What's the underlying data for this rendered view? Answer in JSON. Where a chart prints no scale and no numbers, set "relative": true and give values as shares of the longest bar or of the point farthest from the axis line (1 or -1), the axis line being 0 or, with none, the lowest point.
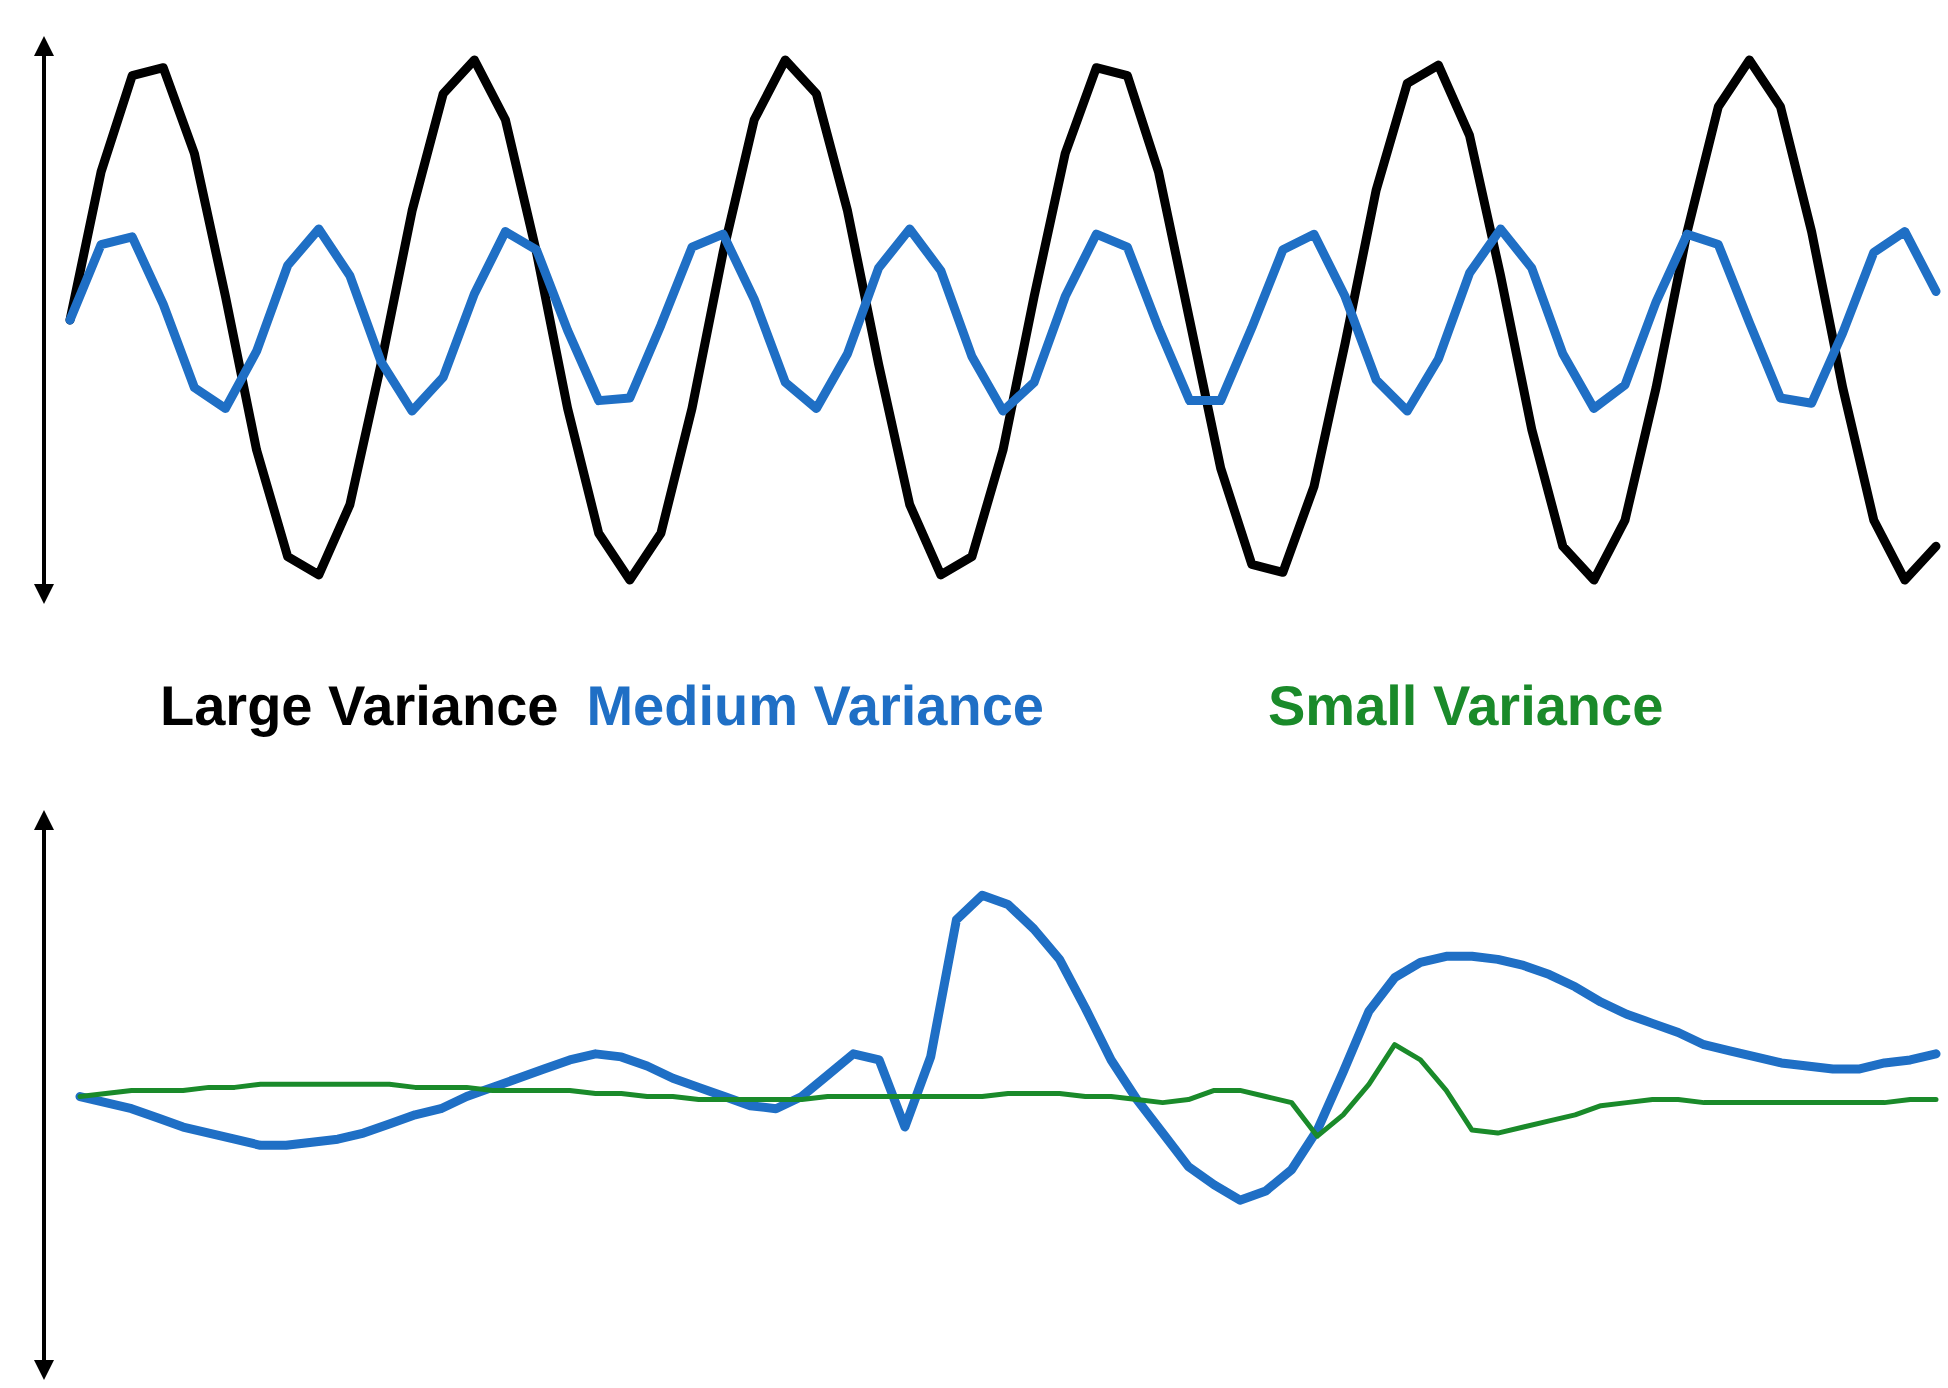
{
  "chart_data": [
    {
      "type": "line",
      "relative": true,
      "grid": false,
      "marker": "none",
      "line_style": "solid",
      "categories": [
        null,
        null,
        null,
        null,
        null,
        null,
        null,
        null,
        null,
        null,
        null,
        null,
        null,
        null,
        null,
        null,
        null,
        null,
        null,
        null,
        null,
        null,
        null,
        null,
        null,
        null,
        null,
        null,
        null,
        null,
        null,
        null,
        null,
        null,
        null,
        null,
        null,
        null,
        null,
        null,
        null,
        null,
        null,
        null,
        null,
        null,
        null,
        null,
        null,
        null,
        null,
        null,
        null,
        null,
        null,
        null,
        null,
        null,
        null,
        null,
        null
      ],
      "series": [
        {
          "name": "Large Variance",
          "color": "#000000",
          "values": [
            0.5,
            0.785,
            0.97,
            0.985,
            0.82,
            0.545,
            0.25,
            0.045,
            0.01,
            0.145,
            0.415,
            0.71,
            0.935,
            1,
            0.885,
            0.63,
            0.33,
            0.09,
            0,
            0.09,
            0.33,
            0.63,
            0.885,
            1,
            0.935,
            0.71,
            0.415,
            0.145,
            0.01,
            0.045,
            0.25,
            0.545,
            0.82,
            0.985,
            0.97,
            0.785,
            0.5,
            0.215,
            0.03,
            0.015,
            0.18,
            0.455,
            0.75,
            0.955,
            0.99,
            0.855,
            0.585,
            0.29,
            0.065,
            0,
            0.115,
            0.37,
            0.67,
            0.91,
            1,
            0.91,
            0.67,
            0.37,
            0.115,
            0,
            0.065
          ]
        },
        {
          "name": "Medium Variance",
          "color": "#1f6fc5",
          "values": [
            0.5,
            0.645,
            0.66,
            0.53,
            0.37,
            0.33,
            0.44,
            0.605,
            0.675,
            0.585,
            0.42,
            0.325,
            0.39,
            0.55,
            0.67,
            0.635,
            0.48,
            0.345,
            0.35,
            0.49,
            0.64,
            0.665,
            0.54,
            0.38,
            0.33,
            0.435,
            0.6,
            0.675,
            0.595,
            0.43,
            0.325,
            0.38,
            0.545,
            0.665,
            0.64,
            0.485,
            0.345,
            0.345,
            0.485,
            0.635,
            0.665,
            0.545,
            0.385,
            0.325,
            0.425,
            0.59,
            0.675,
            0.6,
            0.435,
            0.33,
            0.375,
            0.535,
            0.665,
            0.645,
            0.495,
            0.35,
            0.34,
            0.475,
            0.63,
            0.67,
            0.555
          ]
        }
      ]
    },
    {
      "type": "line",
      "relative": true,
      "grid": false,
      "marker": "none",
      "line_style": "solid",
      "categories": [
        null,
        null,
        null,
        null,
        null,
        null,
        null,
        null,
        null,
        null,
        null,
        null,
        null,
        null,
        null,
        null,
        null,
        null,
        null,
        null,
        null,
        null,
        null,
        null,
        null,
        null,
        null,
        null,
        null,
        null,
        null,
        null,
        null,
        null,
        null,
        null,
        null,
        null,
        null,
        null,
        null,
        null,
        null,
        null,
        null,
        null,
        null,
        null,
        null,
        null,
        null,
        null,
        null,
        null,
        null,
        null,
        null,
        null,
        null,
        null,
        null,
        null,
        null,
        null,
        null,
        null,
        null,
        null,
        null,
        null,
        null,
        null,
        null
      ],
      "series": [
        {
          "color": "#1f6fc5",
          "values": [
            0.34,
            0.32,
            0.3,
            0.27,
            0.24,
            0.22,
            0.2,
            0.18,
            0.18,
            0.19,
            0.2,
            0.22,
            0.25,
            0.28,
            0.3,
            0.34,
            0.37,
            0.4,
            0.43,
            0.46,
            0.48,
            0.47,
            0.44,
            0.4,
            0.37,
            0.34,
            0.31,
            0.3,
            0.34,
            0.41,
            0.48,
            0.46,
            0.24,
            0.47,
            0.92,
            1,
            0.97,
            0.89,
            0.79,
            0.63,
            0.46,
            0.33,
            0.22,
            0.11,
            0.05,
            0,
            0.03,
            0.1,
            0.23,
            0.42,
            0.62,
            0.73,
            0.78,
            0.8,
            0.8,
            0.79,
            0.77,
            0.74,
            0.7,
            0.65,
            0.61,
            0.58,
            0.55,
            0.51,
            0.49,
            0.47,
            0.45,
            0.44,
            0.43,
            0.43,
            0.45,
            0.46,
            0.48
          ]
        },
        {
          "name": "Small Variance",
          "color": "#1a8a2a",
          "values": [
            0.34,
            0.35,
            0.36,
            0.36,
            0.36,
            0.37,
            0.37,
            0.38,
            0.38,
            0.38,
            0.38,
            0.38,
            0.38,
            0.37,
            0.37,
            0.37,
            0.36,
            0.36,
            0.36,
            0.36,
            0.35,
            0.35,
            0.34,
            0.34,
            0.33,
            0.33,
            0.33,
            0.33,
            0.33,
            0.34,
            0.34,
            0.34,
            0.34,
            0.34,
            0.34,
            0.34,
            0.35,
            0.35,
            0.35,
            0.34,
            0.34,
            0.33,
            0.32,
            0.33,
            0.36,
            0.36,
            0.34,
            0.32,
            0.21,
            0.28,
            0.38,
            0.51,
            0.46,
            0.36,
            0.23,
            0.22,
            0.24,
            0.26,
            0.28,
            0.31,
            0.32,
            0.33,
            0.33,
            0.32,
            0.32,
            0.32,
            0.32,
            0.32,
            0.32,
            0.32,
            0.32,
            0.33,
            0.33
          ]
        }
      ]
    }
  ]
}
